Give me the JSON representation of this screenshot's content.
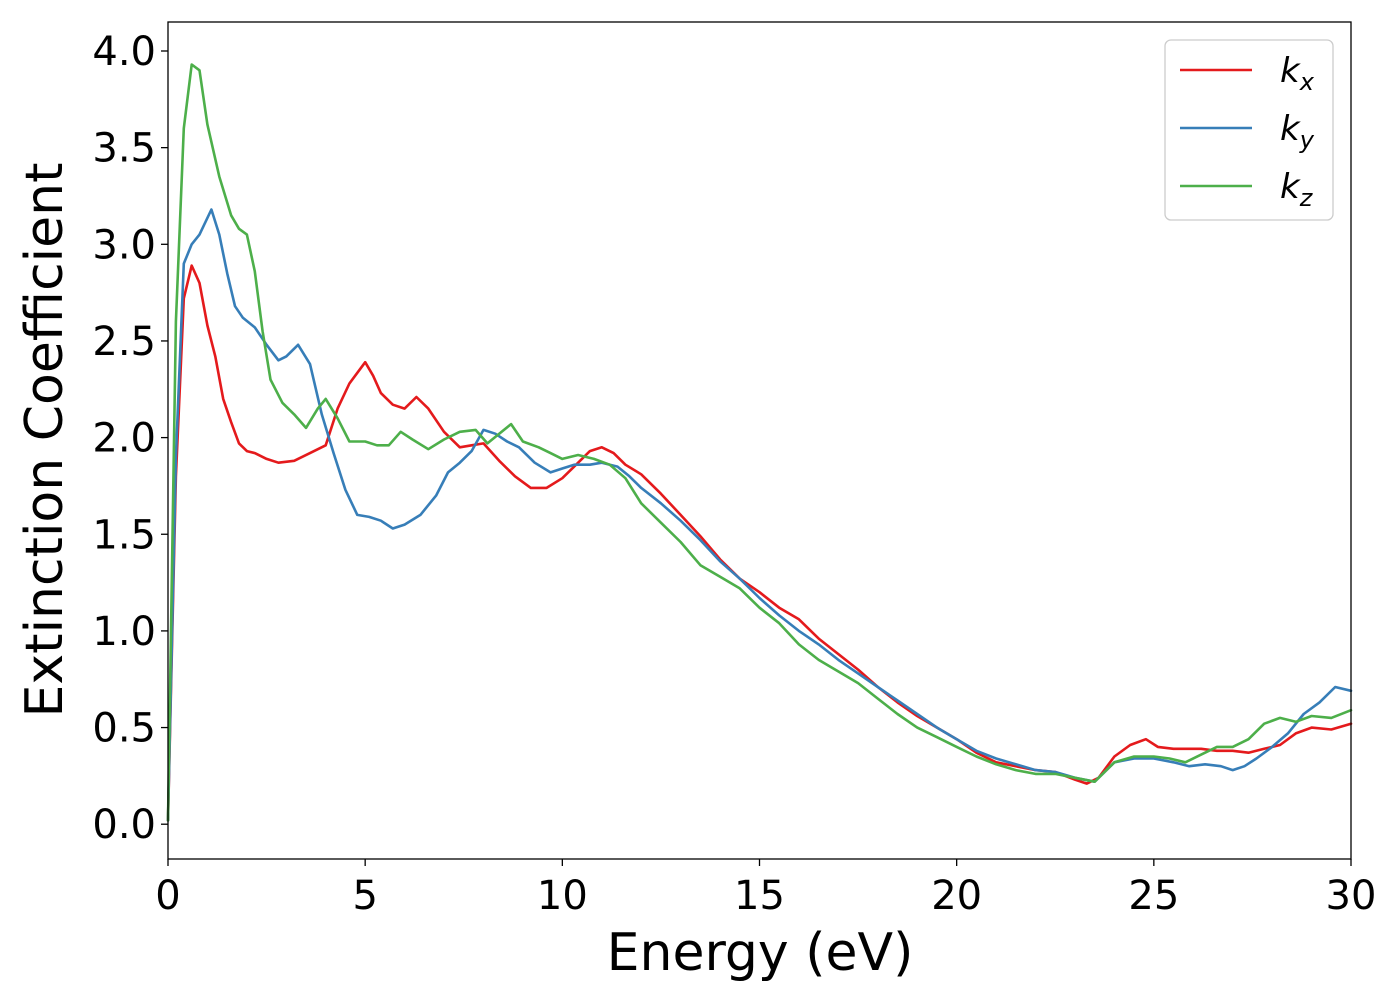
{
  "chart_data": {
    "type": "line",
    "title": "",
    "xlabel": "Energy (eV)",
    "ylabel": "Extinction Coefficient",
    "xlim": [
      0,
      30
    ],
    "ylim": [
      -0.18,
      4.15
    ],
    "xticks": [
      "0",
      "5",
      "10",
      "15",
      "20",
      "25",
      "30"
    ],
    "yticks": [
      "0.0",
      "0.5",
      "1.0",
      "1.5",
      "2.0",
      "2.5",
      "3.0",
      "3.5",
      "4.0"
    ],
    "grid": false,
    "legend_position": "top-right",
    "series": [
      {
        "name": "k",
        "sub": "x",
        "color": "#e41a1c",
        "points": [
          [
            0,
            0.02
          ],
          [
            0.2,
            1.8
          ],
          [
            0.4,
            2.72
          ],
          [
            0.6,
            2.89
          ],
          [
            0.8,
            2.8
          ],
          [
            1.0,
            2.58
          ],
          [
            1.2,
            2.42
          ],
          [
            1.4,
            2.2
          ],
          [
            1.6,
            2.08
          ],
          [
            1.8,
            1.97
          ],
          [
            2.0,
            1.93
          ],
          [
            2.2,
            1.92
          ],
          [
            2.5,
            1.89
          ],
          [
            2.8,
            1.87
          ],
          [
            3.2,
            1.88
          ],
          [
            3.6,
            1.92
          ],
          [
            4.0,
            1.96
          ],
          [
            4.3,
            2.15
          ],
          [
            4.6,
            2.28
          ],
          [
            5.0,
            2.39
          ],
          [
            5.2,
            2.32
          ],
          [
            5.4,
            2.23
          ],
          [
            5.7,
            2.17
          ],
          [
            6.0,
            2.15
          ],
          [
            6.3,
            2.21
          ],
          [
            6.6,
            2.15
          ],
          [
            7.0,
            2.03
          ],
          [
            7.4,
            1.95
          ],
          [
            7.7,
            1.96
          ],
          [
            8.0,
            1.97
          ],
          [
            8.4,
            1.88
          ],
          [
            8.8,
            1.8
          ],
          [
            9.2,
            1.74
          ],
          [
            9.6,
            1.74
          ],
          [
            10.0,
            1.79
          ],
          [
            10.3,
            1.85
          ],
          [
            10.7,
            1.93
          ],
          [
            11.0,
            1.95
          ],
          [
            11.3,
            1.92
          ],
          [
            11.6,
            1.86
          ],
          [
            12.0,
            1.81
          ],
          [
            12.5,
            1.71
          ],
          [
            13.0,
            1.6
          ],
          [
            13.5,
            1.49
          ],
          [
            14.0,
            1.37
          ],
          [
            14.5,
            1.27
          ],
          [
            15.0,
            1.2
          ],
          [
            15.5,
            1.12
          ],
          [
            16.0,
            1.06
          ],
          [
            16.5,
            0.96
          ],
          [
            17.0,
            0.88
          ],
          [
            17.5,
            0.8
          ],
          [
            18.0,
            0.71
          ],
          [
            18.5,
            0.63
          ],
          [
            19.0,
            0.56
          ],
          [
            19.5,
            0.5
          ],
          [
            20.0,
            0.44
          ],
          [
            20.5,
            0.37
          ],
          [
            21.0,
            0.32
          ],
          [
            21.5,
            0.3
          ],
          [
            22.0,
            0.28
          ],
          [
            22.5,
            0.27
          ],
          [
            23.0,
            0.23
          ],
          [
            23.3,
            0.21
          ],
          [
            23.6,
            0.24
          ],
          [
            24.0,
            0.35
          ],
          [
            24.4,
            0.41
          ],
          [
            24.8,
            0.44
          ],
          [
            25.1,
            0.4
          ],
          [
            25.5,
            0.39
          ],
          [
            25.9,
            0.39
          ],
          [
            26.2,
            0.39
          ],
          [
            26.6,
            0.38
          ],
          [
            27.0,
            0.38
          ],
          [
            27.4,
            0.37
          ],
          [
            27.8,
            0.39
          ],
          [
            28.2,
            0.41
          ],
          [
            28.6,
            0.47
          ],
          [
            29.0,
            0.5
          ],
          [
            29.5,
            0.49
          ],
          [
            30.0,
            0.52
          ]
        ]
      },
      {
        "name": "k",
        "sub": "y",
        "color": "#377eb8",
        "points": [
          [
            0,
            0.02
          ],
          [
            0.2,
            1.9
          ],
          [
            0.4,
            2.9
          ],
          [
            0.6,
            3.0
          ],
          [
            0.8,
            3.05
          ],
          [
            1.1,
            3.18
          ],
          [
            1.3,
            3.05
          ],
          [
            1.5,
            2.85
          ],
          [
            1.7,
            2.68
          ],
          [
            1.9,
            2.62
          ],
          [
            2.2,
            2.57
          ],
          [
            2.5,
            2.48
          ],
          [
            2.8,
            2.4
          ],
          [
            3.0,
            2.42
          ],
          [
            3.3,
            2.48
          ],
          [
            3.6,
            2.38
          ],
          [
            3.9,
            2.12
          ],
          [
            4.2,
            1.92
          ],
          [
            4.5,
            1.73
          ],
          [
            4.8,
            1.6
          ],
          [
            5.1,
            1.59
          ],
          [
            5.4,
            1.57
          ],
          [
            5.7,
            1.53
          ],
          [
            6.0,
            1.55
          ],
          [
            6.4,
            1.6
          ],
          [
            6.8,
            1.7
          ],
          [
            7.1,
            1.82
          ],
          [
            7.4,
            1.87
          ],
          [
            7.7,
            1.93
          ],
          [
            8.0,
            2.04
          ],
          [
            8.3,
            2.02
          ],
          [
            8.6,
            1.98
          ],
          [
            8.9,
            1.95
          ],
          [
            9.3,
            1.87
          ],
          [
            9.7,
            1.82
          ],
          [
            10.0,
            1.84
          ],
          [
            10.3,
            1.86
          ],
          [
            10.7,
            1.86
          ],
          [
            11.0,
            1.87
          ],
          [
            11.4,
            1.85
          ],
          [
            11.7,
            1.8
          ],
          [
            12.0,
            1.74
          ],
          [
            12.5,
            1.66
          ],
          [
            13.0,
            1.57
          ],
          [
            13.5,
            1.47
          ],
          [
            14.0,
            1.36
          ],
          [
            14.5,
            1.27
          ],
          [
            15.0,
            1.17
          ],
          [
            15.5,
            1.08
          ],
          [
            16.0,
            1.0
          ],
          [
            16.5,
            0.93
          ],
          [
            17.0,
            0.85
          ],
          [
            17.5,
            0.78
          ],
          [
            18.0,
            0.71
          ],
          [
            18.5,
            0.64
          ],
          [
            19.0,
            0.57
          ],
          [
            19.5,
            0.5
          ],
          [
            20.0,
            0.44
          ],
          [
            20.5,
            0.38
          ],
          [
            21.0,
            0.34
          ],
          [
            21.5,
            0.31
          ],
          [
            22.0,
            0.28
          ],
          [
            22.5,
            0.27
          ],
          [
            23.0,
            0.24
          ],
          [
            23.5,
            0.22
          ],
          [
            24.0,
            0.32
          ],
          [
            24.5,
            0.34
          ],
          [
            25.0,
            0.34
          ],
          [
            25.5,
            0.32
          ],
          [
            25.9,
            0.3
          ],
          [
            26.3,
            0.31
          ],
          [
            26.7,
            0.3
          ],
          [
            27.0,
            0.28
          ],
          [
            27.3,
            0.3
          ],
          [
            27.6,
            0.34
          ],
          [
            28.0,
            0.4
          ],
          [
            28.4,
            0.47
          ],
          [
            28.8,
            0.57
          ],
          [
            29.2,
            0.63
          ],
          [
            29.6,
            0.71
          ],
          [
            30.0,
            0.69
          ]
        ]
      },
      {
        "name": "k",
        "sub": "z",
        "color": "#4daf4a",
        "points": [
          [
            0,
            0.02
          ],
          [
            0.2,
            2.6
          ],
          [
            0.4,
            3.6
          ],
          [
            0.6,
            3.93
          ],
          [
            0.8,
            3.9
          ],
          [
            1.0,
            3.62
          ],
          [
            1.3,
            3.35
          ],
          [
            1.6,
            3.15
          ],
          [
            1.8,
            3.08
          ],
          [
            2.0,
            3.05
          ],
          [
            2.2,
            2.86
          ],
          [
            2.4,
            2.55
          ],
          [
            2.6,
            2.3
          ],
          [
            2.9,
            2.18
          ],
          [
            3.2,
            2.12
          ],
          [
            3.5,
            2.05
          ],
          [
            3.8,
            2.15
          ],
          [
            4.0,
            2.2
          ],
          [
            4.3,
            2.1
          ],
          [
            4.6,
            1.98
          ],
          [
            5.0,
            1.98
          ],
          [
            5.3,
            1.96
          ],
          [
            5.6,
            1.96
          ],
          [
            5.9,
            2.03
          ],
          [
            6.2,
            1.99
          ],
          [
            6.6,
            1.94
          ],
          [
            7.0,
            1.99
          ],
          [
            7.4,
            2.03
          ],
          [
            7.8,
            2.04
          ],
          [
            8.1,
            1.97
          ],
          [
            8.4,
            2.02
          ],
          [
            8.7,
            2.07
          ],
          [
            9.0,
            1.98
          ],
          [
            9.4,
            1.95
          ],
          [
            9.7,
            1.92
          ],
          [
            10.0,
            1.89
          ],
          [
            10.4,
            1.91
          ],
          [
            10.8,
            1.89
          ],
          [
            11.2,
            1.86
          ],
          [
            11.6,
            1.79
          ],
          [
            12.0,
            1.66
          ],
          [
            12.5,
            1.56
          ],
          [
            13.0,
            1.46
          ],
          [
            13.5,
            1.34
          ],
          [
            14.0,
            1.28
          ],
          [
            14.5,
            1.22
          ],
          [
            15.0,
            1.12
          ],
          [
            15.5,
            1.04
          ],
          [
            16.0,
            0.93
          ],
          [
            16.5,
            0.85
          ],
          [
            17.0,
            0.79
          ],
          [
            17.5,
            0.73
          ],
          [
            18.0,
            0.65
          ],
          [
            18.5,
            0.57
          ],
          [
            19.0,
            0.5
          ],
          [
            19.5,
            0.45
          ],
          [
            20.0,
            0.4
          ],
          [
            20.5,
            0.35
          ],
          [
            21.0,
            0.31
          ],
          [
            21.5,
            0.28
          ],
          [
            22.0,
            0.26
          ],
          [
            22.5,
            0.26
          ],
          [
            23.0,
            0.24
          ],
          [
            23.5,
            0.22
          ],
          [
            24.0,
            0.32
          ],
          [
            24.5,
            0.35
          ],
          [
            25.0,
            0.35
          ],
          [
            25.4,
            0.34
          ],
          [
            25.8,
            0.32
          ],
          [
            26.2,
            0.36
          ],
          [
            26.6,
            0.4
          ],
          [
            27.0,
            0.4
          ],
          [
            27.4,
            0.44
          ],
          [
            27.8,
            0.52
          ],
          [
            28.2,
            0.55
          ],
          [
            28.6,
            0.53
          ],
          [
            29.0,
            0.56
          ],
          [
            29.5,
            0.55
          ],
          [
            30.0,
            0.59
          ]
        ]
      }
    ]
  }
}
